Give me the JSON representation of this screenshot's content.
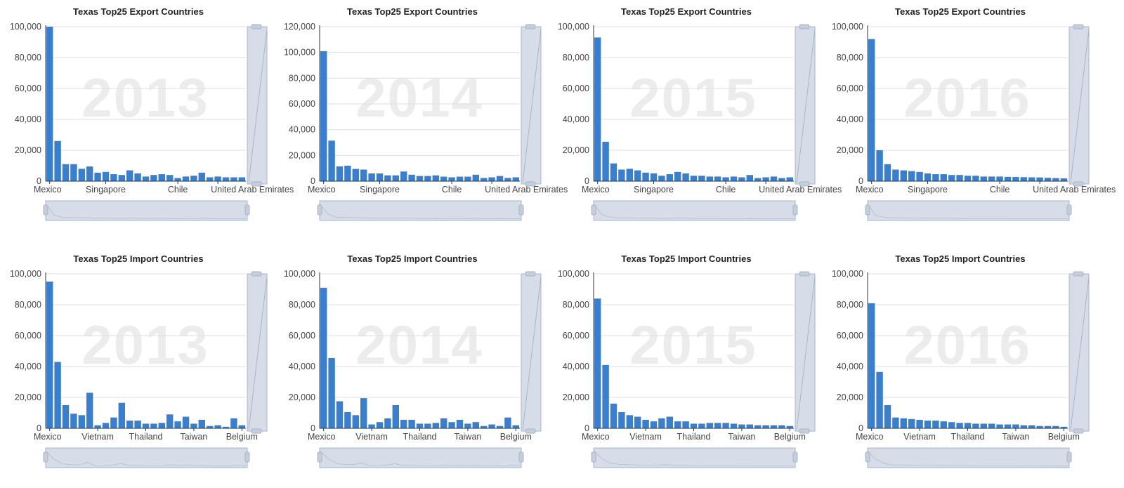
{
  "colors": {
    "bar": "#3a7fcd",
    "grid": "#dfdfdf",
    "axis": "#333333",
    "watermark": "#ececec",
    "zoom_fill": "#d7dde8",
    "zoom_border": "#aab4c6"
  },
  "chart_data": [
    {
      "type": "bar",
      "title": "Texas Top25 Export Countries",
      "year_label": "2013",
      "ylim": [
        0,
        100000
      ],
      "yticks": [
        "0",
        "20,000",
        "40,000",
        "60,000",
        "80,000",
        "100,000"
      ],
      "xtick_labels": [
        {
          "index": 0,
          "label": "Mexico"
        },
        {
          "index": 7,
          "label": "Singapore"
        },
        {
          "index": 16,
          "label": "Chile"
        },
        {
          "index": 21,
          "label": "United Arab Emirates"
        }
      ],
      "categories": [
        "Mexico",
        "",
        "",
        "",
        "",
        "",
        "",
        "Singapore",
        "",
        "",
        "",
        "",
        "",
        "",
        "",
        "",
        "Chile",
        "",
        "",
        "",
        "",
        "United Arab Emirates",
        "",
        "",
        ""
      ],
      "values": [
        100000,
        26000,
        11000,
        11000,
        8000,
        9500,
        5500,
        6000,
        4500,
        4000,
        7000,
        5000,
        3000,
        4000,
        4500,
        4000,
        2000,
        3000,
        3500,
        5500,
        2500,
        3000,
        2500,
        2500,
        2500
      ]
    },
    {
      "type": "bar",
      "title": "Texas Top25 Export Countries",
      "year_label": "2014",
      "ylim": [
        0,
        120000
      ],
      "yticks": [
        "0",
        "20,000",
        "40,000",
        "60,000",
        "80,000",
        "100,000",
        "120,000"
      ],
      "xtick_labels": [
        {
          "index": 0,
          "label": "Mexico"
        },
        {
          "index": 7,
          "label": "Singapore"
        },
        {
          "index": 16,
          "label": "Chile"
        },
        {
          "index": 21,
          "label": "United Arab Emirates"
        }
      ],
      "categories": [
        "Mexico",
        "",
        "",
        "",
        "",
        "",
        "",
        "Singapore",
        "",
        "",
        "",
        "",
        "",
        "",
        "",
        "",
        "Chile",
        "",
        "",
        "",
        "",
        "United Arab Emirates",
        "",
        "",
        ""
      ],
      "values": [
        101000,
        31500,
        11500,
        12000,
        9500,
        9000,
        6000,
        6000,
        4500,
        4500,
        7500,
        5000,
        4000,
        4000,
        4500,
        3500,
        3000,
        3500,
        3500,
        5000,
        2500,
        3000,
        4000,
        2500,
        3000
      ]
    },
    {
      "type": "bar",
      "title": "Texas Top25 Export Countries",
      "year_label": "2015",
      "ylim": [
        0,
        100000
      ],
      "yticks": [
        "0",
        "20,000",
        "40,000",
        "60,000",
        "80,000",
        "100,000"
      ],
      "xtick_labels": [
        {
          "index": 0,
          "label": "Mexico"
        },
        {
          "index": 7,
          "label": "Singapore"
        },
        {
          "index": 16,
          "label": "Chile"
        },
        {
          "index": 21,
          "label": "United Arab Emirates"
        }
      ],
      "categories": [
        "Mexico",
        "",
        "",
        "",
        "",
        "",
        "",
        "Singapore",
        "",
        "",
        "",
        "",
        "",
        "",
        "",
        "",
        "Chile",
        "",
        "",
        "",
        "",
        "United Arab Emirates",
        "",
        "",
        ""
      ],
      "values": [
        93000,
        25500,
        11500,
        7500,
        8000,
        7000,
        5500,
        5000,
        3500,
        4500,
        6000,
        5000,
        3500,
        3500,
        3000,
        3000,
        2500,
        3000,
        2500,
        4000,
        2000,
        2500,
        3000,
        2000,
        2500
      ]
    },
    {
      "type": "bar",
      "title": "Texas Top25 Export Countries",
      "year_label": "2016",
      "ylim": [
        0,
        100000
      ],
      "yticks": [
        "0",
        "20,000",
        "40,000",
        "60,000",
        "80,000",
        "100,000"
      ],
      "xtick_labels": [
        {
          "index": 0,
          "label": "Mexico"
        },
        {
          "index": 7,
          "label": "Singapore"
        },
        {
          "index": 16,
          "label": "Chile"
        },
        {
          "index": 21,
          "label": "United Arab Emirates"
        }
      ],
      "categories": [
        "Mexico",
        "",
        "",
        "",
        "",
        "",
        "",
        "Singapore",
        "",
        "",
        "",
        "",
        "",
        "",
        "",
        "",
        "Chile",
        "",
        "",
        "",
        "",
        "United Arab Emirates",
        "",
        "",
        ""
      ],
      "values": [
        92000,
        20000,
        11000,
        7500,
        7000,
        6500,
        6000,
        5000,
        4500,
        4500,
        4000,
        4000,
        3500,
        3500,
        3000,
        3000,
        3000,
        2800,
        2700,
        2600,
        2500,
        2400,
        2200,
        2000,
        1800
      ]
    },
    {
      "type": "bar",
      "title": "Texas Top25 Import Countries",
      "year_label": "2013",
      "ylim": [
        0,
        100000
      ],
      "yticks": [
        "0",
        "20,000",
        "40,000",
        "60,000",
        "80,000",
        "100,000"
      ],
      "xtick_labels": [
        {
          "index": 0,
          "label": "Mexico"
        },
        {
          "index": 6,
          "label": "Vietnam"
        },
        {
          "index": 12,
          "label": "Thailand"
        },
        {
          "index": 18,
          "label": "Taiwan"
        },
        {
          "index": 24,
          "label": "Belgium"
        }
      ],
      "categories": [
        "Mexico",
        "",
        "",
        "",
        "",
        "",
        "Vietnam",
        "",
        "",
        "",
        "",
        "",
        "Thailand",
        "",
        "",
        "",
        "",
        "",
        "Taiwan",
        "",
        "",
        "",
        "",
        "",
        "Belgium"
      ],
      "values": [
        95000,
        43000,
        15000,
        9500,
        8500,
        23000,
        2000,
        3500,
        7000,
        16500,
        5000,
        5000,
        3000,
        3000,
        3500,
        9000,
        4500,
        7500,
        3000,
        5500,
        1500,
        2000,
        1000,
        6500,
        2000
      ]
    },
    {
      "type": "bar",
      "title": "Texas Top25 Import Countries",
      "year_label": "2014",
      "ylim": [
        0,
        100000
      ],
      "yticks": [
        "0",
        "20,000",
        "40,000",
        "60,000",
        "80,000",
        "100,000"
      ],
      "xtick_labels": [
        {
          "index": 0,
          "label": "Mexico"
        },
        {
          "index": 6,
          "label": "Vietnam"
        },
        {
          "index": 12,
          "label": "Thailand"
        },
        {
          "index": 18,
          "label": "Taiwan"
        },
        {
          "index": 24,
          "label": "Belgium"
        }
      ],
      "categories": [
        "Mexico",
        "",
        "",
        "",
        "",
        "",
        "Vietnam",
        "",
        "",
        "",
        "",
        "",
        "Thailand",
        "",
        "",
        "",
        "",
        "",
        "Taiwan",
        "",
        "",
        "",
        "",
        "",
        "Belgium"
      ],
      "values": [
        91000,
        45500,
        17500,
        10500,
        8500,
        19500,
        2500,
        4000,
        6500,
        15000,
        5500,
        5500,
        3000,
        3000,
        3500,
        6500,
        4000,
        5500,
        3000,
        4000,
        1500,
        2500,
        1500,
        7000,
        2000
      ]
    },
    {
      "type": "bar",
      "title": "Texas Top25 Import Countries",
      "year_label": "2015",
      "ylim": [
        0,
        100000
      ],
      "yticks": [
        "0",
        "20,000",
        "40,000",
        "60,000",
        "80,000",
        "100,000"
      ],
      "xtick_labels": [
        {
          "index": 0,
          "label": "Mexico"
        },
        {
          "index": 6,
          "label": "Vietnam"
        },
        {
          "index": 12,
          "label": "Thailand"
        },
        {
          "index": 18,
          "label": "Taiwan"
        },
        {
          "index": 24,
          "label": "Belgium"
        }
      ],
      "categories": [
        "Mexico",
        "",
        "",
        "",
        "",
        "",
        "Vietnam",
        "",
        "",
        "",
        "",
        "",
        "Thailand",
        "",
        "",
        "",
        "",
        "",
        "Taiwan",
        "",
        "",
        "",
        "",
        "",
        "Belgium"
      ],
      "values": [
        84000,
        41000,
        16000,
        10500,
        8500,
        7500,
        5500,
        4500,
        6500,
        7500,
        4500,
        4500,
        3000,
        3000,
        3500,
        3500,
        3500,
        3000,
        2500,
        2500,
        2000,
        2000,
        2000,
        2000,
        1500
      ]
    },
    {
      "type": "bar",
      "title": "Texas Top25 Import Countries",
      "year_label": "2016",
      "ylim": [
        0,
        100000
      ],
      "yticks": [
        "0",
        "20,000",
        "40,000",
        "60,000",
        "80,000",
        "100,000"
      ],
      "xtick_labels": [
        {
          "index": 0,
          "label": "Mexico"
        },
        {
          "index": 6,
          "label": "Vietnam"
        },
        {
          "index": 12,
          "label": "Thailand"
        },
        {
          "index": 18,
          "label": "Taiwan"
        },
        {
          "index": 24,
          "label": "Belgium"
        }
      ],
      "categories": [
        "Mexico",
        "",
        "",
        "",
        "",
        "",
        "Vietnam",
        "",
        "",
        "",
        "",
        "",
        "Thailand",
        "",
        "",
        "",
        "",
        "",
        "Taiwan",
        "",
        "",
        "",
        "",
        "",
        "Belgium"
      ],
      "values": [
        81000,
        36500,
        15000,
        7000,
        6500,
        6000,
        5500,
        5000,
        5000,
        4500,
        4000,
        3500,
        3500,
        3000,
        3000,
        3000,
        2500,
        2500,
        2500,
        2000,
        2000,
        1500,
        1500,
        1500,
        1000
      ]
    }
  ]
}
